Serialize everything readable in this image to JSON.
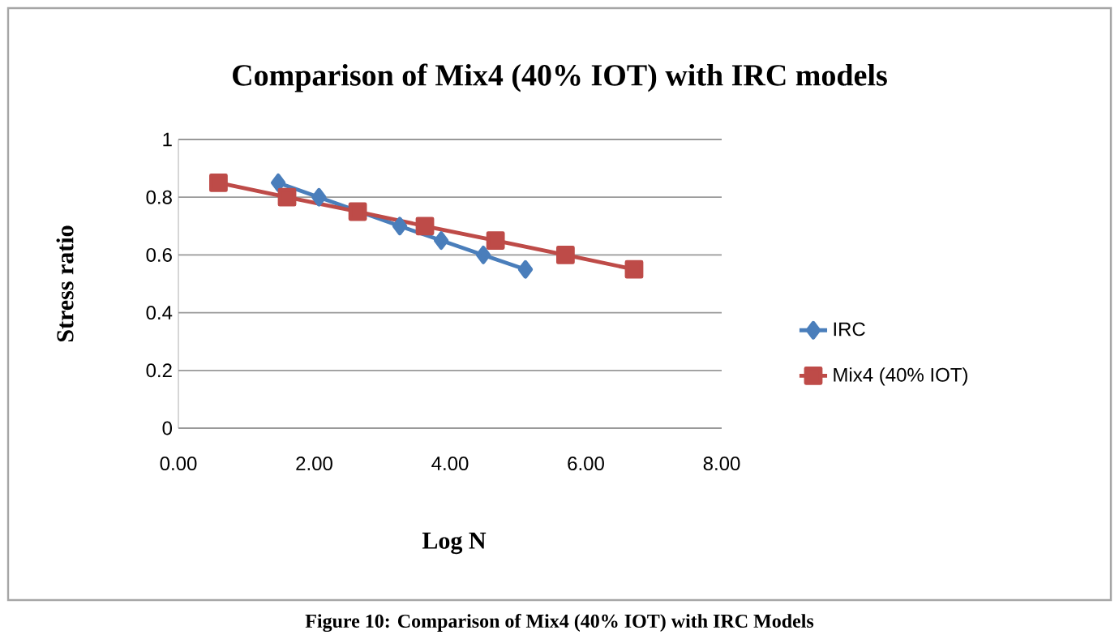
{
  "chart_data": {
    "type": "line",
    "title": "Comparison of Mix4 (40% IOT) with IRC models",
    "xlabel": "Log N",
    "ylabel": "Stress ratio",
    "annotations": [
      "Figure 10: Comparison of Mix4 (40% IOT) with IRC Models"
    ],
    "series": [
      {
        "name": "IRC",
        "color": "#4a7ebb",
        "marker": "diamond",
        "x": [
          1.47,
          2.07,
          2.65,
          3.26,
          3.87,
          4.49,
          5.11
        ],
        "values": [
          0.85,
          0.8,
          null,
          0.7,
          0.65,
          0.6,
          0.55
        ]
      },
      {
        "name": "Mix4 (40% IOT)",
        "color": "#be4b48",
        "marker": "square",
        "x": [
          0.59,
          1.6,
          2.64,
          3.63,
          4.67,
          5.7,
          6.71
        ],
        "values": [
          0.85,
          0.8,
          0.75,
          0.7,
          0.65,
          0.6,
          0.55
        ]
      }
    ],
    "xlim": [
      0,
      8
    ],
    "ylim": [
      0,
      1
    ],
    "xticks": [
      {
        "value": 0,
        "label": "0.00"
      },
      {
        "value": 2,
        "label": "2.00"
      },
      {
        "value": 4,
        "label": "4.00"
      },
      {
        "value": 6,
        "label": "6.00"
      },
      {
        "value": 8,
        "label": "8.00"
      }
    ],
    "yticks": [
      0,
      0.2,
      0.4,
      0.6,
      0.8,
      1
    ],
    "grid": "y",
    "legend": "right",
    "line_style": "solid"
  }
}
